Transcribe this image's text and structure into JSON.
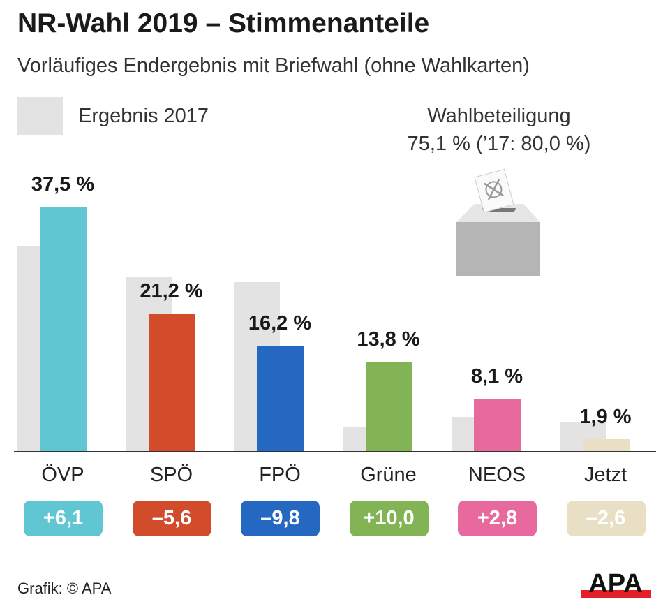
{
  "chart_data": {
    "type": "bar",
    "title": "NR-Wahl 2019 – Stimmenanteile",
    "subtitle": "Vorläufiges Endergebnis mit Briefwahl (ohne Wahlkarten)",
    "legend": {
      "label": "Ergebnis 2017",
      "color": "#e3e3e3",
      "placement": "top-left"
    },
    "categories": [
      "ÖVP",
      "SPÖ",
      "FPÖ",
      "Grüne",
      "NEOS",
      "Jetzt"
    ],
    "series": [
      {
        "name": "Ergebnis 2017",
        "values": [
          31.4,
          26.8,
          26.0,
          3.8,
          5.3,
          4.5
        ]
      },
      {
        "values": [
          37.5,
          21.2,
          16.2,
          13.8,
          8.1,
          1.9
        ]
      }
    ],
    "value_labels": [
      "37,5 %",
      "21,2 %",
      "16,2 %",
      "13,8 %",
      "8,1 %",
      "1,9 %"
    ],
    "changes": [
      "+6,1",
      "–5,6",
      "–9,8",
      "+10,0",
      "+2,8",
      "–2,6"
    ],
    "colors": [
      "#5fc6d2",
      "#d24b2a",
      "#2468c2",
      "#82b456",
      "#e8699e",
      "#e8dfc4"
    ],
    "ylim": [
      0,
      40
    ],
    "grid": false
  },
  "turnout": {
    "label": "Wahlbeteiligung",
    "value": "75,1 % (’17: 80,0 %)",
    "icon": "ballot-box-icon"
  },
  "source": "Grafik: © APA",
  "logo": "APA"
}
